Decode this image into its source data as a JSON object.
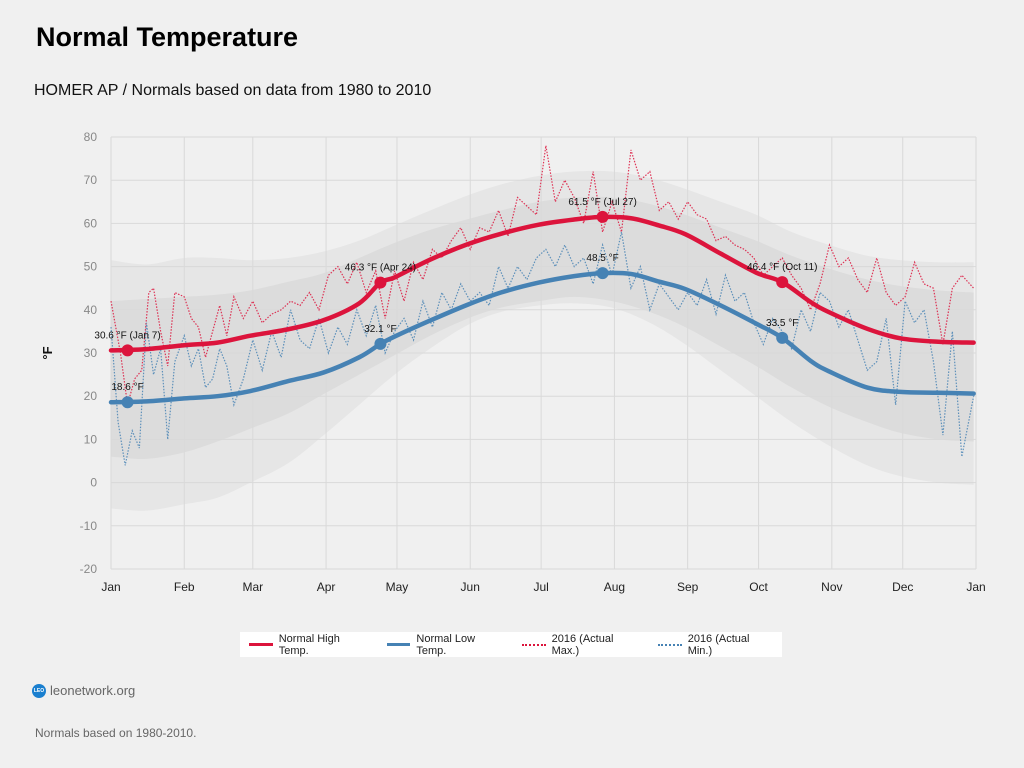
{
  "header": {
    "title": "Normal Temperature",
    "subtitle": "HOMER AP / Normals based on data from 1980 to 2010"
  },
  "footer": {
    "logo_text": "LEO",
    "site": "leonetwork.org",
    "note": "Normals based on 1980-2010."
  },
  "colors": {
    "high": "#dc143c",
    "low": "#4682b4",
    "band_outer": "#e6e6e6",
    "band_inner": "#dcdcdc",
    "grid": "#d9d9d9"
  },
  "chart_data": {
    "type": "line",
    "title": "Normal Temperature",
    "ylabel": "°F",
    "xlabel": "",
    "ylim": [
      -20,
      80
    ],
    "yticks": [
      -20,
      -10,
      0,
      10,
      20,
      30,
      40,
      50,
      60,
      70,
      80
    ],
    "xticks": [
      "Jan",
      "Feb",
      "Mar",
      "Apr",
      "May",
      "Jun",
      "Jul",
      "Aug",
      "Sep",
      "Oct",
      "Nov",
      "Dec",
      "Jan"
    ],
    "grid": true,
    "legend_position": "bottom",
    "x_unit": "day of year (0-365)",
    "series": [
      {
        "name": "Normal High Temp.",
        "style": "solid",
        "x": [
          0,
          15,
          31,
          45,
          59,
          75,
          90,
          105,
          114,
          120,
          135,
          151,
          165,
          181,
          196,
          208,
          220,
          232,
          243,
          258,
          273,
          284,
          296,
          304,
          320,
          334,
          350,
          365
        ],
        "values": [
          30.6,
          30.9,
          31.8,
          32.4,
          34.0,
          35.5,
          37.6,
          41.5,
          46.3,
          47.5,
          51.6,
          55.2,
          57.6,
          59.7,
          60.9,
          61.5,
          61.2,
          59.5,
          57.5,
          53.0,
          48.6,
          46.4,
          41.8,
          39.4,
          35.6,
          33.4,
          32.6,
          32.4
        ]
      },
      {
        "name": "Normal Low Temp.",
        "style": "solid",
        "x": [
          0,
          15,
          31,
          45,
          59,
          75,
          90,
          105,
          114,
          120,
          135,
          151,
          165,
          181,
          196,
          208,
          220,
          232,
          243,
          258,
          273,
          284,
          296,
          304,
          320,
          334,
          350,
          365
        ],
        "values": [
          18.6,
          18.8,
          19.5,
          20.0,
          21.2,
          23.5,
          25.5,
          29.0,
          32.1,
          33.8,
          37.5,
          41.2,
          44.0,
          46.3,
          47.8,
          48.5,
          48.3,
          46.5,
          44.8,
          41.0,
          36.8,
          33.5,
          28.2,
          25.7,
          22.0,
          21.0,
          20.8,
          20.6
        ]
      },
      {
        "name": "2016 (Actual Max.)",
        "style": "dotted",
        "x": [
          0,
          4,
          7,
          10,
          13,
          16,
          18,
          21,
          24,
          27,
          31,
          34,
          37,
          40,
          43,
          46,
          49,
          52,
          56,
          60,
          64,
          68,
          72,
          76,
          80,
          84,
          88,
          92,
          96,
          100,
          104,
          108,
          112,
          116,
          120,
          124,
          128,
          132,
          136,
          140,
          144,
          148,
          152,
          156,
          160,
          164,
          168,
          172,
          176,
          180,
          184,
          188,
          192,
          196,
          200,
          204,
          208,
          212,
          216,
          220,
          224,
          228,
          232,
          236,
          240,
          244,
          248,
          252,
          256,
          260,
          264,
          268,
          272,
          276,
          280,
          284,
          288,
          292,
          296,
          300,
          304,
          308,
          312,
          316,
          320,
          324,
          328,
          332,
          336,
          340,
          344,
          348,
          352,
          356,
          360,
          365
        ],
        "values": [
          42,
          30,
          18,
          24,
          26,
          44,
          45,
          35,
          27,
          44,
          43,
          38,
          36,
          29,
          35,
          41,
          34,
          43,
          38,
          42,
          37,
          39,
          40,
          42,
          41,
          44,
          40,
          48,
          50,
          46,
          51,
          44,
          49,
          38,
          49,
          42,
          51,
          47,
          54,
          52,
          56,
          59,
          54,
          59,
          58,
          63,
          57,
          66,
          64,
          62,
          78,
          65,
          70,
          66,
          60,
          72,
          58,
          65,
          58,
          77,
          70,
          72,
          63,
          65,
          61,
          65,
          62,
          61,
          56,
          57,
          55,
          54,
          52,
          48,
          50,
          52,
          48,
          45,
          40,
          46,
          55,
          50,
          52,
          47,
          44,
          52,
          44,
          41,
          43,
          51,
          46,
          45,
          32,
          45,
          48,
          45
        ]
      },
      {
        "name": "2016 (Actual Min.)",
        "style": "dotted",
        "x": [
          0,
          3,
          6,
          9,
          12,
          15,
          18,
          21,
          24,
          27,
          31,
          34,
          37,
          40,
          43,
          46,
          49,
          52,
          56,
          60,
          64,
          68,
          72,
          76,
          80,
          84,
          88,
          92,
          96,
          100,
          104,
          108,
          112,
          116,
          120,
          124,
          128,
          132,
          136,
          140,
          144,
          148,
          152,
          156,
          160,
          164,
          168,
          172,
          176,
          180,
          184,
          188,
          192,
          196,
          200,
          204,
          208,
          212,
          216,
          220,
          224,
          228,
          232,
          236,
          240,
          244,
          248,
          252,
          256,
          260,
          264,
          268,
          272,
          276,
          280,
          284,
          288,
          292,
          296,
          300,
          304,
          308,
          312,
          316,
          320,
          324,
          328,
          332,
          336,
          340,
          344,
          348,
          352,
          356,
          360,
          365
        ],
        "values": [
          36,
          14,
          4,
          12,
          8,
          37,
          25,
          31,
          10,
          28,
          34,
          27,
          31,
          22,
          24,
          31,
          27,
          18,
          24,
          33,
          26,
          35,
          29,
          40,
          33,
          31,
          38,
          30,
          36,
          32,
          40,
          34,
          41,
          30,
          35,
          38,
          33,
          42,
          36,
          44,
          40,
          46,
          42,
          44,
          41,
          50,
          45,
          50,
          47,
          52,
          54,
          50,
          55,
          50,
          52,
          46,
          55,
          48,
          58,
          45,
          50,
          40,
          46,
          43,
          40,
          44,
          41,
          47,
          39,
          48,
          42,
          44,
          37,
          32,
          38,
          35,
          31,
          40,
          35,
          44,
          42,
          36,
          40,
          33,
          26,
          28,
          38,
          18,
          42,
          37,
          40,
          28,
          11,
          35,
          6,
          20
        ]
      }
    ],
    "bands": [
      {
        "name": "outer range",
        "x": [
          0,
          15,
          31,
          45,
          59,
          75,
          90,
          105,
          120,
          135,
          151,
          165,
          181,
          196,
          212,
          228,
          243,
          258,
          273,
          288,
          304,
          320,
          334,
          350,
          365
        ],
        "upper": [
          51.5,
          50.5,
          52.0,
          52.0,
          51.5,
          52.0,
          53.5,
          56.0,
          59.5,
          63.0,
          66.5,
          69.0,
          71.0,
          72.0,
          72.0,
          70.5,
          68.0,
          65.0,
          62.0,
          58.0,
          55.0,
          52.5,
          51.5,
          51.0,
          51.0
        ],
        "lower": [
          -6.0,
          -6.5,
          -5.0,
          -3.5,
          0,
          4.5,
          11.0,
          18.0,
          25.0,
          31.0,
          36.5,
          39.5,
          41.0,
          41.5,
          40.5,
          37.0,
          32.0,
          26.0,
          20.0,
          14.0,
          8.5,
          4.0,
          1.5,
          0,
          -0.5
        ]
      },
      {
        "name": "inner range",
        "x": [
          0,
          15,
          31,
          45,
          59,
          75,
          90,
          105,
          120,
          135,
          151,
          165,
          181,
          196,
          212,
          228,
          243,
          258,
          273,
          288,
          304,
          320,
          334,
          350,
          365
        ],
        "upper": [
          42.0,
          42.5,
          43.0,
          43.5,
          44.5,
          46.5,
          48.5,
          52.0,
          55.5,
          58.5,
          61.0,
          63.0,
          65.0,
          66.0,
          66.0,
          64.5,
          62.0,
          59.0,
          56.0,
          52.5,
          49.5,
          47.0,
          45.5,
          44.5,
          44.0
        ],
        "lower": [
          6.0,
          5.5,
          7.0,
          9.5,
          12.5,
          16.0,
          20.5,
          25.0,
          29.5,
          34.0,
          38.0,
          40.5,
          42.0,
          43.0,
          42.0,
          39.5,
          36.0,
          31.5,
          27.0,
          22.0,
          17.5,
          14.0,
          11.5,
          10.0,
          9.5
        ]
      }
    ],
    "annotations": [
      {
        "series": "Normal High Temp.",
        "x": 7,
        "value": 30.6,
        "label": "30.6 °F (Jan 7)"
      },
      {
        "series": "Normal Low Temp.",
        "x": 7,
        "value": 18.6,
        "label": "18.6 °F"
      },
      {
        "series": "Normal High Temp.",
        "x": 114,
        "value": 46.3,
        "label": "46.3 °F (Apr 24)"
      },
      {
        "series": "Normal Low Temp.",
        "x": 114,
        "value": 32.1,
        "label": "32.1 °F"
      },
      {
        "series": "Normal High Temp.",
        "x": 208,
        "value": 61.5,
        "label": "61.5 °F (Jul 27)"
      },
      {
        "series": "Normal Low Temp.",
        "x": 208,
        "value": 48.5,
        "label": "48.5 °F"
      },
      {
        "series": "Normal High Temp.",
        "x": 284,
        "value": 46.4,
        "label": "46.4 °F (Oct 11)"
      },
      {
        "series": "Normal Low Temp.",
        "x": 284,
        "value": 33.5,
        "label": "33.5 °F"
      }
    ],
    "month_start_days": [
      0,
      31,
      60,
      91,
      121,
      152,
      182,
      213,
      244,
      274,
      305,
      335,
      366
    ]
  },
  "legend": {
    "items": [
      {
        "label": "Normal High Temp."
      },
      {
        "label": "Normal Low Temp."
      },
      {
        "label": "2016 (Actual Max.)"
      },
      {
        "label": "2016 (Actual Min.)"
      }
    ]
  }
}
